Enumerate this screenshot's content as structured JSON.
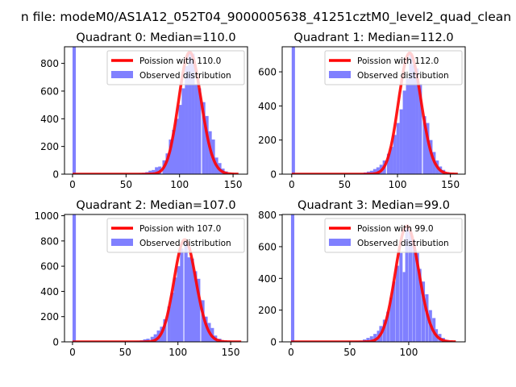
{
  "figure_title": "n file: modeM0/AS1A12_052T04_9000005638_41251cztM0_level2_quad_clean",
  "colors": {
    "bars": "#8080ff",
    "curve": "#ff0000",
    "axis": "#000000"
  },
  "chart_data": [
    {
      "type": "bar",
      "title": "Quadrant 0: Median=110.0",
      "xlim": [
        -7.5,
        163.5
      ],
      "ylim": [
        0,
        920
      ],
      "xticks": [
        0,
        50,
        100,
        150
      ],
      "yticks": [
        0,
        200,
        400,
        600,
        800
      ],
      "bin_width": 3.1,
      "bins": [
        [
          0,
          5000
        ],
        [
          62,
          5
        ],
        [
          65,
          10
        ],
        [
          68,
          15
        ],
        [
          71,
          25
        ],
        [
          74,
          30
        ],
        [
          77,
          50
        ],
        [
          80,
          55
        ],
        [
          84,
          100
        ],
        [
          87,
          150
        ],
        [
          90,
          250
        ],
        [
          93,
          320
        ],
        [
          96,
          400
        ],
        [
          99,
          500
        ],
        [
          102,
          620
        ],
        [
          105,
          780
        ],
        [
          108,
          880
        ],
        [
          111,
          870
        ],
        [
          114,
          650
        ],
        [
          117,
          620
        ],
        [
          121,
          520
        ],
        [
          124,
          420
        ],
        [
          127,
          310
        ],
        [
          130,
          250
        ],
        [
          133,
          120
        ],
        [
          136,
          80
        ],
        [
          139,
          40
        ],
        [
          142,
          20
        ],
        [
          146,
          8
        ],
        [
          149,
          4
        ],
        [
          152,
          2
        ]
      ],
      "curve": {
        "lambda": 110.0,
        "peak": 880,
        "xmax": 155
      },
      "legend": {
        "placement": "top-right",
        "entries": [
          "Poission with 110.0",
          "Observed distribution"
        ]
      }
    },
    {
      "type": "bar",
      "title": "Quadrant 1: Median=112.0",
      "xlim": [
        -9,
        164
      ],
      "ylim": [
        0,
        747
      ],
      "xticks": [
        0,
        50,
        100,
        150
      ],
      "yticks": [
        0,
        200,
        400,
        600
      ],
      "bin_width": 3.1,
      "bins": [
        [
          0,
          5000
        ],
        [
          65,
          5
        ],
        [
          68,
          10
        ],
        [
          71,
          15
        ],
        [
          74,
          20
        ],
        [
          77,
          30
        ],
        [
          80,
          40
        ],
        [
          83,
          55
        ],
        [
          86,
          80
        ],
        [
          90,
          120
        ],
        [
          93,
          160
        ],
        [
          96,
          230
        ],
        [
          99,
          300
        ],
        [
          102,
          380
        ],
        [
          105,
          490
        ],
        [
          108,
          560
        ],
        [
          111,
          700
        ],
        [
          114,
          640
        ],
        [
          117,
          620
        ],
        [
          120,
          530
        ],
        [
          124,
          340
        ],
        [
          127,
          300
        ],
        [
          130,
          200
        ],
        [
          133,
          130
        ],
        [
          136,
          80
        ],
        [
          139,
          45
        ],
        [
          142,
          25
        ],
        [
          146,
          12
        ],
        [
          149,
          6
        ],
        [
          152,
          2
        ]
      ],
      "curve": {
        "lambda": 112.0,
        "peak": 710,
        "xmax": 157
      },
      "legend": {
        "placement": "top-right",
        "entries": [
          "Poission with 112.0",
          "Observed distribution"
        ]
      }
    },
    {
      "type": "bar",
      "title": "Quadrant 2: Median=107.0",
      "xlim": [
        -7.6,
        166
      ],
      "ylim": [
        0,
        1010
      ],
      "xticks": [
        0,
        50,
        100,
        150
      ],
      "yticks": [
        0,
        200,
        400,
        600,
        800,
        1000
      ],
      "bin_width": 3.2,
      "bins": [
        [
          0,
          5000
        ],
        [
          58,
          5
        ],
        [
          61,
          8
        ],
        [
          64,
          12
        ],
        [
          67,
          20
        ],
        [
          70,
          25
        ],
        [
          74,
          40
        ],
        [
          77,
          60
        ],
        [
          80,
          90
        ],
        [
          83,
          120
        ],
        [
          86,
          180
        ],
        [
          90,
          280
        ],
        [
          93,
          390
        ],
        [
          96,
          510
        ],
        [
          99,
          600
        ],
        [
          102,
          740
        ],
        [
          106,
          800
        ],
        [
          109,
          670
        ],
        [
          112,
          660
        ],
        [
          115,
          560
        ],
        [
          118,
          500
        ],
        [
          122,
          330
        ],
        [
          125,
          200
        ],
        [
          128,
          150
        ],
        [
          131,
          110
        ],
        [
          134,
          50
        ],
        [
          138,
          25
        ],
        [
          141,
          12
        ],
        [
          144,
          6
        ],
        [
          147,
          3
        ]
      ],
      "curve": {
        "lambda": 107.0,
        "peak": 810,
        "xmax": 160
      },
      "legend": {
        "placement": "top-right",
        "entries": [
          "Poission with 107.0",
          "Observed distribution"
        ]
      }
    },
    {
      "type": "bar",
      "title": "Quadrant 3: Median=99.0",
      "xlim": [
        -7.5,
        148
      ],
      "ylim": [
        0,
        803
      ],
      "xticks": [
        0,
        50,
        100
      ],
      "yticks": [
        0,
        200,
        400,
        600,
        800
      ],
      "bin_width": 2.8,
      "bins": [
        [
          0,
          5000
        ],
        [
          55,
          5
        ],
        [
          58,
          8
        ],
        [
          61,
          15
        ],
        [
          64,
          25
        ],
        [
          67,
          35
        ],
        [
          70,
          50
        ],
        [
          73,
          70
        ],
        [
          75,
          100
        ],
        [
          78,
          140
        ],
        [
          81,
          190
        ],
        [
          84,
          280
        ],
        [
          86,
          380
        ],
        [
          89,
          480
        ],
        [
          92,
          560
        ],
        [
          95,
          440
        ],
        [
          97,
          720
        ],
        [
          100,
          700
        ],
        [
          103,
          640
        ],
        [
          106,
          560
        ],
        [
          108,
          460
        ],
        [
          111,
          380
        ],
        [
          114,
          300
        ],
        [
          117,
          200
        ],
        [
          120,
          150
        ],
        [
          122,
          80
        ],
        [
          125,
          50
        ],
        [
          128,
          25
        ],
        [
          131,
          12
        ],
        [
          134,
          6
        ]
      ],
      "curve": {
        "lambda": 99.0,
        "peak": 730,
        "xmax": 140
      },
      "legend": {
        "placement": "top-right",
        "entries": [
          "Poission with 99.0",
          "Observed distribution"
        ]
      }
    }
  ]
}
